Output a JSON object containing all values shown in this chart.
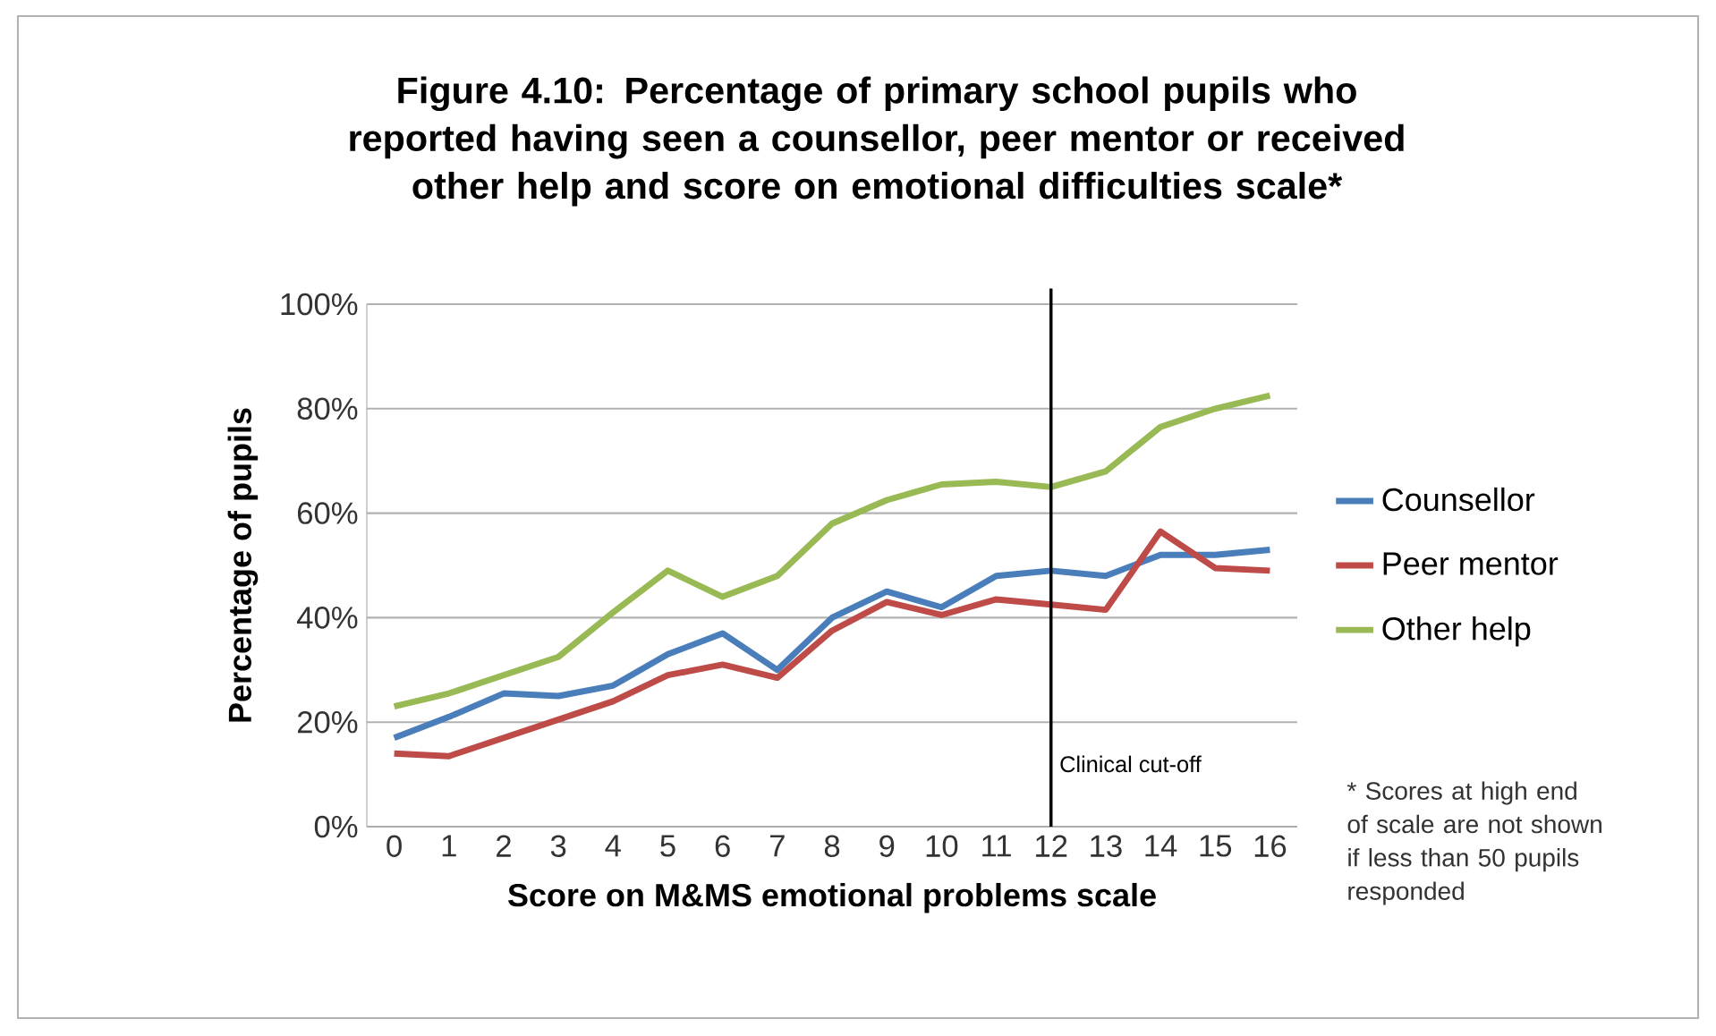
{
  "chart_data": {
    "type": "line",
    "title": "Figure 4.10: Percentage of primary school pupils who reported having seen a counsellor, peer mentor or received other help and score on emotional difficulties scale*",
    "xlabel": "Score on M&MS emotional problems scale",
    "ylabel": "Percentage of pupils",
    "x": [
      0,
      1,
      2,
      3,
      4,
      5,
      6,
      7,
      8,
      9,
      10,
      11,
      12,
      13,
      14,
      15,
      16
    ],
    "xlim": [
      -0.5,
      16.5
    ],
    "xticks": [
      0,
      1,
      2,
      3,
      4,
      5,
      6,
      7,
      8,
      9,
      10,
      11,
      12,
      13,
      14,
      15,
      16
    ],
    "ylim": [
      0,
      100
    ],
    "yticks": [
      {
        "value": 0,
        "label": "0%"
      },
      {
        "value": 20,
        "label": "20%"
      },
      {
        "value": 40,
        "label": "40%"
      },
      {
        "value": 60,
        "label": "60%"
      },
      {
        "value": 80,
        "label": "80%"
      },
      {
        "value": 100,
        "label": "100%"
      }
    ],
    "grid": "y",
    "legend": "right",
    "series": [
      {
        "name": "Counsellor",
        "color": "#4a7ebb",
        "values": [
          17,
          21,
          25.5,
          25,
          27,
          33,
          37,
          30,
          40,
          45,
          42,
          48,
          49,
          48,
          52,
          52,
          53
        ]
      },
      {
        "name": "Peer mentor",
        "color": "#be4b48",
        "values": [
          14,
          13.5,
          17,
          20.5,
          24,
          29,
          31,
          28.5,
          37.5,
          43,
          40.5,
          43.5,
          42.5,
          41.5,
          56.5,
          49.5,
          49
        ]
      },
      {
        "name": "Other help",
        "color": "#98b954",
        "values": [
          23,
          25.5,
          29,
          32.5,
          41,
          49,
          44,
          48,
          58,
          62.5,
          65.5,
          66,
          65,
          68,
          76.5,
          80,
          82.5
        ]
      }
    ],
    "ref_lines": [
      {
        "axis": "x",
        "value": 12,
        "label": "Clinical cut-off",
        "color": "#000000"
      }
    ],
    "annotations": [
      "* Scores at high end of scale are not shown if less than 50 pupils responded"
    ]
  }
}
